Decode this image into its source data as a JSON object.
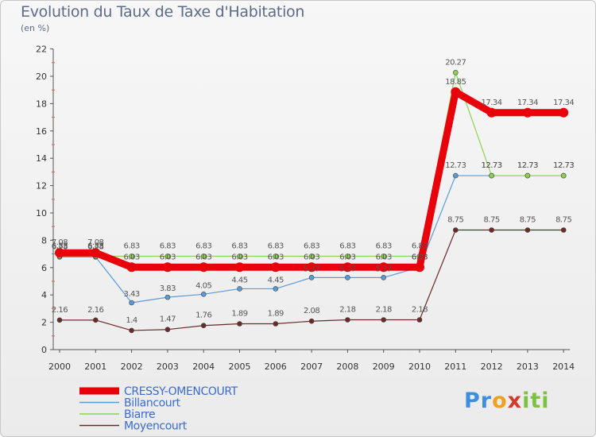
{
  "chart_data": {
    "type": "line",
    "title": "Evolution du Taux de Taxe d'Habitation",
    "subtitle": "(en %)",
    "categories": [
      "2000",
      "2001",
      "2002",
      "2003",
      "2004",
      "2005",
      "2006",
      "2007",
      "2008",
      "2009",
      "2010",
      "2011",
      "2012",
      "2013",
      "2014"
    ],
    "ylim": [
      0,
      22
    ],
    "yticks": [
      0,
      2,
      4,
      6,
      8,
      10,
      12,
      14,
      16,
      18,
      20,
      22
    ],
    "grid": false,
    "legend_position": "bottom-left",
    "series": [
      {
        "name": "CRESSY-OMENCOURT",
        "color": "#e8000b",
        "values": [
          7.08,
          7.08,
          6.03,
          6.03,
          6.03,
          6.03,
          6.03,
          6.03,
          6.03,
          6.03,
          6.03,
          18.85,
          17.34,
          17.34,
          17.34
        ],
        "labels": [
          "7.08",
          "7.08",
          "6.03",
          "6.03",
          "6.03",
          "6.03",
          "6.03",
          "6.03",
          "6.03",
          "6.03",
          "6.03",
          "18.85",
          "17.34",
          "17.34",
          "17.34"
        ]
      },
      {
        "name": "Billancourt",
        "color": "#5b9bd5",
        "values": [
          6.78,
          6.78,
          3.43,
          3.83,
          4.05,
          4.45,
          4.45,
          5.27,
          5.27,
          5.27,
          6.03,
          12.73,
          12.73,
          12.73,
          12.73
        ],
        "labels": [
          "6.78",
          "6.78",
          "3.43",
          "3.83",
          "4.05",
          "4.45",
          "4.45",
          "5.27",
          "5.27",
          "5.27",
          "6.03",
          "12.73",
          "12.73",
          "12.73",
          "12.73"
        ]
      },
      {
        "name": "Biarre",
        "color": "#8fd14f",
        "values": [
          6.83,
          6.83,
          6.83,
          6.83,
          6.83,
          6.83,
          6.83,
          6.83,
          6.83,
          6.83,
          6.83,
          20.27,
          12.73,
          12.73,
          12.73
        ],
        "labels": [
          "6.83",
          "6.83",
          "6.83",
          "6.83",
          "6.83",
          "6.83",
          "6.83",
          "6.83",
          "6.83",
          "6.83",
          "6.83",
          "20.27",
          "12.73",
          "12.73",
          "12.73"
        ]
      },
      {
        "name": "Moyencourt",
        "color": "#6b2a2a",
        "values": [
          2.16,
          2.16,
          1.4,
          1.47,
          1.76,
          1.89,
          1.89,
          2.08,
          2.18,
          2.18,
          2.18,
          8.75,
          8.75,
          8.75,
          8.75
        ],
        "labels": [
          "2.16",
          "2.16",
          "1.4",
          "1.47",
          "1.76",
          "1.89",
          "1.89",
          "2.08",
          "2.18",
          "2.18",
          "2.18",
          "8.75",
          "8.75",
          "8.75",
          "8.75"
        ]
      }
    ]
  },
  "logo": {
    "p": "Pr",
    "r": "o",
    "x": "x",
    "i": "iti"
  }
}
